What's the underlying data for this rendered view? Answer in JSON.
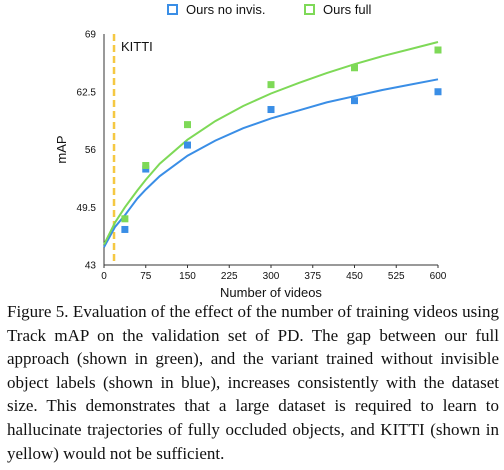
{
  "chart_data": {
    "type": "scatter",
    "title": "",
    "xlabel": "Number of videos",
    "ylabel": "mAP",
    "xlim": [
      0,
      600
    ],
    "ylim": [
      43,
      69
    ],
    "x_ticks": [
      0,
      75,
      150,
      225,
      300,
      375,
      450,
      525,
      600
    ],
    "y_ticks": [
      43,
      49.5,
      56,
      62.5,
      69
    ],
    "grid": false,
    "legend_position": "top",
    "series": [
      {
        "name": "Ours no invis.",
        "color": "#3a8ee6",
        "x": [
          37.5,
          75,
          150,
          300,
          450,
          600
        ],
        "y": [
          47.0,
          53.8,
          56.5,
          60.5,
          61.5,
          62.5
        ],
        "fit": [
          [
            0,
            45.0
          ],
          [
            20,
            47.3
          ],
          [
            37.5,
            48.6
          ],
          [
            60,
            50.5
          ],
          [
            75,
            51.5
          ],
          [
            100,
            53.0
          ],
          [
            150,
            55.3
          ],
          [
            200,
            57.0
          ],
          [
            250,
            58.4
          ],
          [
            300,
            59.5
          ],
          [
            350,
            60.4
          ],
          [
            400,
            61.3
          ],
          [
            450,
            62.0
          ],
          [
            500,
            62.7
          ],
          [
            550,
            63.3
          ],
          [
            600,
            63.9
          ]
        ]
      },
      {
        "name": "Ours full",
        "color": "#7ed957",
        "x": [
          37.5,
          75,
          150,
          300,
          450,
          600
        ],
        "y": [
          48.2,
          54.2,
          58.8,
          63.3,
          65.2,
          67.2
        ],
        "fit": [
          [
            0,
            45.3
          ],
          [
            20,
            47.8
          ],
          [
            37.5,
            49.5
          ],
          [
            60,
            51.4
          ],
          [
            75,
            52.6
          ],
          [
            100,
            54.4
          ],
          [
            150,
            57.1
          ],
          [
            200,
            59.2
          ],
          [
            250,
            60.9
          ],
          [
            300,
            62.3
          ],
          [
            350,
            63.5
          ],
          [
            400,
            64.6
          ],
          [
            450,
            65.6
          ],
          [
            500,
            66.5
          ],
          [
            550,
            67.3
          ],
          [
            600,
            68.1
          ]
        ]
      }
    ],
    "reference_line": {
      "label": "KITTI",
      "x": 18,
      "color": "#f5c842"
    }
  },
  "caption": "Figure 5. Evaluation of the effect of the number of training videos using Track mAP on the validation set of PD. The gap between our full approach (shown in green), and the variant trained without invisible object labels (shown in blue), increases consistently with the dataset size. This demonstrates that a large dataset is required to learn to hallucinate trajectories of fully occluded objects, and KITTI (shown in yellow) would not be sufficient."
}
